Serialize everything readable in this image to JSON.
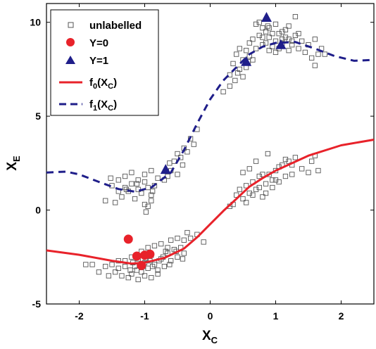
{
  "chart_data": {
    "type": "scatter",
    "xlabel": "X",
    "xlabel_sub": "C",
    "ylabel": "X",
    "ylabel_sub": "E",
    "xlim": [
      -2.5,
      2.5
    ],
    "ylim": [
      -5,
      11
    ],
    "xticks": [
      -2,
      -1,
      0,
      1,
      2
    ],
    "yticks": [
      -5,
      0,
      5,
      10
    ],
    "grid": false,
    "legend_position": "top-left",
    "legend": [
      {
        "key": "unlabelled",
        "text": "unlabelled",
        "marker": "square-open",
        "color": "#555555"
      },
      {
        "key": "y0",
        "text": "Y=0",
        "marker": "circle",
        "color": "#e8222a"
      },
      {
        "key": "y1",
        "text": "Y=1",
        "marker": "triangle",
        "color": "#1f1e8a"
      },
      {
        "key": "f0",
        "text_main": "f",
        "text_sub": "0",
        "text_mid": "(X",
        "text_sub2": "C",
        "text_end": ")",
        "marker": "solid-line",
        "color": "#e8222a"
      },
      {
        "key": "f1",
        "text_main": "f",
        "text_sub": "1",
        "text_mid": "(X",
        "text_sub2": "C",
        "text_end": ")",
        "marker": "dashed-line",
        "color": "#1f1e8a"
      }
    ],
    "series": [
      {
        "name": "unlabelled",
        "marker": "square-open",
        "color": "#555555",
        "points": [
          [
            -1.5,
            1.3
          ],
          [
            -1.4,
            1.6
          ],
          [
            -1.3,
            1.2
          ],
          [
            -1.25,
            1.0
          ],
          [
            -1.2,
            1.4
          ],
          [
            -1.1,
            1.1
          ],
          [
            -1.05,
            0.9
          ],
          [
            -1.0,
            1.5
          ],
          [
            -0.95,
            1.2
          ],
          [
            -0.9,
            0.8
          ],
          [
            -1.45,
            0.4
          ],
          [
            -1.35,
            0.7
          ],
          [
            -1.15,
            0.6
          ],
          [
            -0.85,
            1.3
          ],
          [
            -0.8,
            1.7
          ],
          [
            -1.6,
            0.5
          ],
          [
            -1.0,
            0.3
          ],
          [
            -1.3,
            1.8
          ],
          [
            -1.2,
            2.0
          ],
          [
            -0.9,
            2.1
          ],
          [
            -1.1,
            1.6
          ],
          [
            -1.0,
            1.9
          ],
          [
            -0.95,
            0.2
          ],
          [
            -0.88,
            1.0
          ],
          [
            -1.28,
            1.1
          ],
          [
            -1.12,
            1.4
          ],
          [
            -1.52,
            1.7
          ],
          [
            -1.4,
            1.0
          ],
          [
            -0.98,
            -0.1
          ],
          [
            -0.9,
            0.5
          ],
          [
            -0.7,
            1.6
          ],
          [
            -0.6,
            2.1
          ],
          [
            -0.55,
            2.6
          ],
          [
            -0.5,
            3.0
          ],
          [
            -0.45,
            2.8
          ],
          [
            -0.4,
            3.3
          ],
          [
            -0.35,
            3.1
          ],
          [
            -0.3,
            3.8
          ],
          [
            -0.25,
            3.5
          ],
          [
            -0.2,
            4.3
          ],
          [
            -0.65,
            1.8
          ],
          [
            -0.5,
            1.9
          ],
          [
            -0.42,
            2.4
          ],
          [
            -0.62,
            2.5
          ],
          [
            0.2,
            6.3
          ],
          [
            0.3,
            7.2
          ],
          [
            0.35,
            7.8
          ],
          [
            0.4,
            8.3
          ],
          [
            0.45,
            7.5
          ],
          [
            0.5,
            8.0
          ],
          [
            0.55,
            8.5
          ],
          [
            0.6,
            8.9
          ],
          [
            0.65,
            9.1
          ],
          [
            0.7,
            8.6
          ],
          [
            0.75,
            9.3
          ],
          [
            0.8,
            8.8
          ],
          [
            0.85,
            9.5
          ],
          [
            0.9,
            9.2
          ],
          [
            0.95,
            8.7
          ],
          [
            1.0,
            9.0
          ],
          [
            1.05,
            9.4
          ],
          [
            1.1,
            8.9
          ],
          [
            1.15,
            9.6
          ],
          [
            1.2,
            9.1
          ],
          [
            1.25,
            8.8
          ],
          [
            1.3,
            9.3
          ],
          [
            1.35,
            8.6
          ],
          [
            1.4,
            9.0
          ],
          [
            1.45,
            8.4
          ],
          [
            1.5,
            8.8
          ],
          [
            0.7,
            9.9
          ],
          [
            0.75,
            10.0
          ],
          [
            0.8,
            9.7
          ],
          [
            0.9,
            8.5
          ],
          [
            1.0,
            8.4
          ],
          [
            1.1,
            9.5
          ],
          [
            1.2,
            9.8
          ],
          [
            0.6,
            8.2
          ],
          [
            0.5,
            7.1
          ],
          [
            0.45,
            8.6
          ],
          [
            0.55,
            7.6
          ],
          [
            0.65,
            8.0
          ],
          [
            0.85,
            8.9
          ],
          [
            0.95,
            9.4
          ],
          [
            1.05,
            8.6
          ],
          [
            1.15,
            9.2
          ],
          [
            1.25,
            9.0
          ],
          [
            1.35,
            9.4
          ],
          [
            1.55,
            8.1
          ],
          [
            1.65,
            8.3
          ],
          [
            0.3,
            6.6
          ],
          [
            0.38,
            6.9
          ],
          [
            0.42,
            7.3
          ],
          [
            0.58,
            7.9
          ],
          [
            1.6,
            9.1
          ],
          [
            1.7,
            8.6
          ],
          [
            1.75,
            8.3
          ],
          [
            1.3,
            10.3
          ],
          [
            0.88,
            9.8
          ],
          [
            1.6,
            7.7
          ],
          [
            0.8,
            9.2
          ],
          [
            0.9,
            9.7
          ],
          [
            1.0,
            9.9
          ],
          [
            1.1,
            9.1
          ],
          [
            1.2,
            8.5
          ],
          [
            -1.5,
            -2.9
          ],
          [
            -1.4,
            -3.1
          ],
          [
            -1.3,
            -2.7
          ],
          [
            -1.2,
            -3.4
          ],
          [
            -1.15,
            -3.0
          ],
          [
            -1.1,
            -2.6
          ],
          [
            -1.05,
            -3.3
          ],
          [
            -1.0,
            -2.8
          ],
          [
            -0.95,
            -3.1
          ],
          [
            -0.9,
            -2.4
          ],
          [
            -0.85,
            -2.9
          ],
          [
            -0.8,
            -3.2
          ],
          [
            -0.75,
            -2.6
          ],
          [
            -0.7,
            -3.0
          ],
          [
            -0.65,
            -2.3
          ],
          [
            -0.6,
            -2.7
          ],
          [
            -0.55,
            -2.1
          ],
          [
            -0.5,
            -2.5
          ],
          [
            -0.45,
            -2.0
          ],
          [
            -0.4,
            -2.3
          ],
          [
            -1.35,
            -3.5
          ],
          [
            -1.25,
            -3.6
          ],
          [
            -1.1,
            -3.7
          ],
          [
            -1.0,
            -3.5
          ],
          [
            -0.9,
            -3.6
          ],
          [
            -0.8,
            -3.4
          ],
          [
            -1.45,
            -3.3
          ],
          [
            -1.55,
            -3.5
          ],
          [
            -1.2,
            -2.5
          ],
          [
            -1.05,
            -2.2
          ],
          [
            -0.95,
            -2.0
          ],
          [
            -0.85,
            -1.9
          ],
          [
            -0.75,
            -1.8
          ],
          [
            -0.65,
            -2.0
          ],
          [
            -0.6,
            -1.6
          ],
          [
            -0.5,
            -1.5
          ],
          [
            -0.4,
            -1.6
          ],
          [
            -0.35,
            -1.2
          ],
          [
            -0.3,
            -1.5
          ],
          [
            -0.2,
            -1.3
          ],
          [
            -1.6,
            -3.0
          ],
          [
            -1.7,
            -3.3
          ],
          [
            -1.3,
            -3.0
          ],
          [
            -1.18,
            -2.8
          ],
          [
            -1.02,
            -3.0
          ],
          [
            -0.92,
            -2.7
          ],
          [
            -0.72,
            -2.5
          ],
          [
            -0.62,
            -2.9
          ],
          [
            -0.52,
            -2.2
          ],
          [
            -0.42,
            -2.6
          ],
          [
            -0.1,
            -1.7
          ],
          [
            -1.9,
            -2.9
          ],
          [
            -1.8,
            -2.9
          ],
          [
            -1.4,
            -2.7
          ],
          [
            -1.12,
            -3.2
          ],
          [
            -0.98,
            -2.6
          ],
          [
            -0.88,
            -3.0
          ],
          [
            -0.78,
            -2.7
          ],
          [
            -0.68,
            -2.2
          ],
          [
            -1.22,
            -3.2
          ],
          [
            0.35,
            0.3
          ],
          [
            0.4,
            0.8
          ],
          [
            0.45,
            1.1
          ],
          [
            0.5,
            0.6
          ],
          [
            0.55,
            1.3
          ],
          [
            0.6,
            0.9
          ],
          [
            0.65,
            1.5
          ],
          [
            0.7,
            1.1
          ],
          [
            0.75,
            1.8
          ],
          [
            0.8,
            0.7
          ],
          [
            0.85,
            1.4
          ],
          [
            0.9,
            1.9
          ],
          [
            0.95,
            1.2
          ],
          [
            1.0,
            2.1
          ],
          [
            1.05,
            1.5
          ],
          [
            1.1,
            2.4
          ],
          [
            1.15,
            1.8
          ],
          [
            1.2,
            2.6
          ],
          [
            1.25,
            1.9
          ],
          [
            1.3,
            2.8
          ],
          [
            1.4,
            2.2
          ],
          [
            1.5,
            2.0
          ],
          [
            1.55,
            2.6
          ],
          [
            1.6,
            2.9
          ],
          [
            1.65,
            2.1
          ],
          [
            0.5,
            2.0
          ],
          [
            0.6,
            2.2
          ],
          [
            0.7,
            2.6
          ],
          [
            0.3,
            0.2
          ],
          [
            0.55,
            0.4
          ],
          [
            0.85,
            0.9
          ],
          [
            0.95,
            1.6
          ],
          [
            1.05,
            2.3
          ],
          [
            1.15,
            2.7
          ],
          [
            1.25,
            2.4
          ],
          [
            0.75,
            1.2
          ],
          [
            0.88,
            3.0
          ],
          [
            1.0,
            1.6
          ],
          [
            0.8,
            1.9
          ],
          [
            0.65,
            0.8
          ]
        ]
      },
      {
        "name": "Y=0",
        "marker": "circle",
        "color": "#e8222a",
        "points": [
          [
            -1.25,
            -1.55
          ],
          [
            -1.12,
            -2.45
          ],
          [
            -1.0,
            -2.4
          ],
          [
            -0.92,
            -2.35
          ],
          [
            -1.05,
            -2.95
          ]
        ]
      },
      {
        "name": "Y=1",
        "marker": "triangle",
        "color": "#1f1e8a",
        "points": [
          [
            -0.68,
            2.15
          ],
          [
            0.55,
            7.9
          ],
          [
            0.86,
            10.25
          ],
          [
            1.08,
            8.8
          ]
        ]
      },
      {
        "name": "f0(XC)",
        "line": "solid",
        "color": "#e8222a",
        "points": [
          [
            -2.5,
            -2.15
          ],
          [
            -2.0,
            -2.38
          ],
          [
            -1.5,
            -2.7
          ],
          [
            -1.2,
            -2.85
          ],
          [
            -1.0,
            -2.8
          ],
          [
            -0.7,
            -2.55
          ],
          [
            -0.4,
            -2.05
          ],
          [
            -0.2,
            -1.45
          ],
          [
            0.0,
            -0.75
          ],
          [
            0.2,
            -0.05
          ],
          [
            0.4,
            0.6
          ],
          [
            0.6,
            1.25
          ],
          [
            0.8,
            1.7
          ],
          [
            1.0,
            2.1
          ],
          [
            1.5,
            2.9
          ],
          [
            2.0,
            3.45
          ],
          [
            2.5,
            3.75
          ]
        ]
      },
      {
        "name": "f1(XC)",
        "line": "dashed",
        "color": "#1f1e8a",
        "points": [
          [
            -2.5,
            2.0
          ],
          [
            -2.2,
            2.05
          ],
          [
            -2.0,
            1.9
          ],
          [
            -1.7,
            1.5
          ],
          [
            -1.4,
            1.12
          ],
          [
            -1.15,
            0.98
          ],
          [
            -0.9,
            1.2
          ],
          [
            -0.6,
            2.0
          ],
          [
            -0.4,
            3.2
          ],
          [
            -0.2,
            4.6
          ],
          [
            0.0,
            5.9
          ],
          [
            0.2,
            6.9
          ],
          [
            0.4,
            7.6
          ],
          [
            0.6,
            8.3
          ],
          [
            0.8,
            8.7
          ],
          [
            1.0,
            8.9
          ],
          [
            1.3,
            8.95
          ],
          [
            1.6,
            8.6
          ],
          [
            1.9,
            8.2
          ],
          [
            2.2,
            7.95
          ],
          [
            2.5,
            8.0
          ]
        ]
      }
    ]
  }
}
